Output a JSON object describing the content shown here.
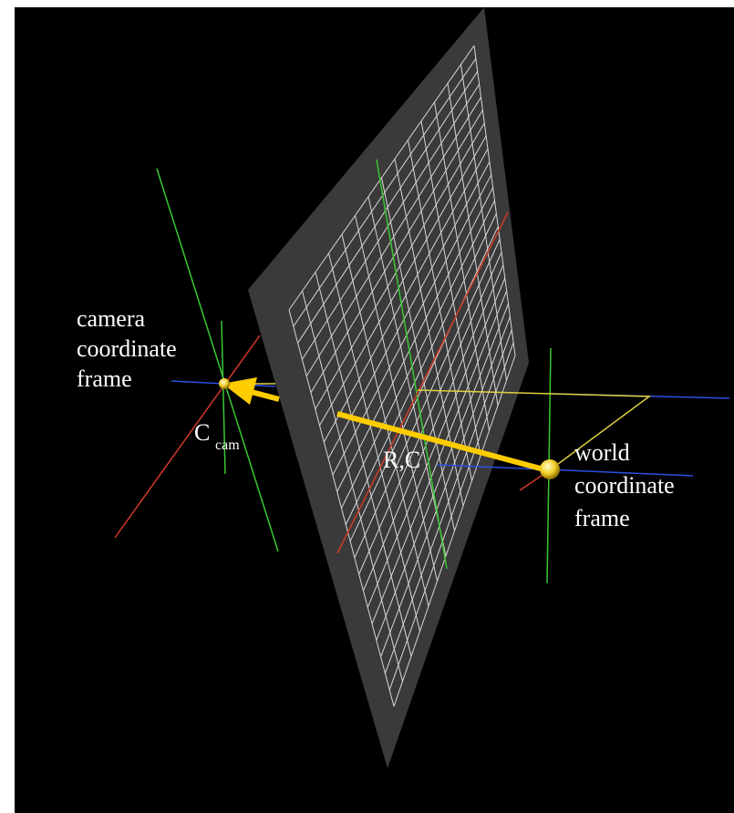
{
  "labels": {
    "camera_frame": [
      "camera",
      "coordinate",
      "frame"
    ],
    "camera_center_main": "C",
    "camera_center_sub": "cam",
    "transform": "R,C",
    "world_frame": [
      "world",
      "coordinate",
      "frame"
    ]
  },
  "colors": {
    "background": "#000000",
    "image_plane": "#3a3a3a",
    "grid": "#d8d8d8",
    "x_axis": "#d23a2a",
    "y_axis": "#39c832",
    "z_axis": "#2b50e0",
    "projection_lines": "#e0d040",
    "arrow": "#ffcc00",
    "label_text": "#ffffff"
  },
  "grid": {
    "rows": 24,
    "cols": 14
  }
}
